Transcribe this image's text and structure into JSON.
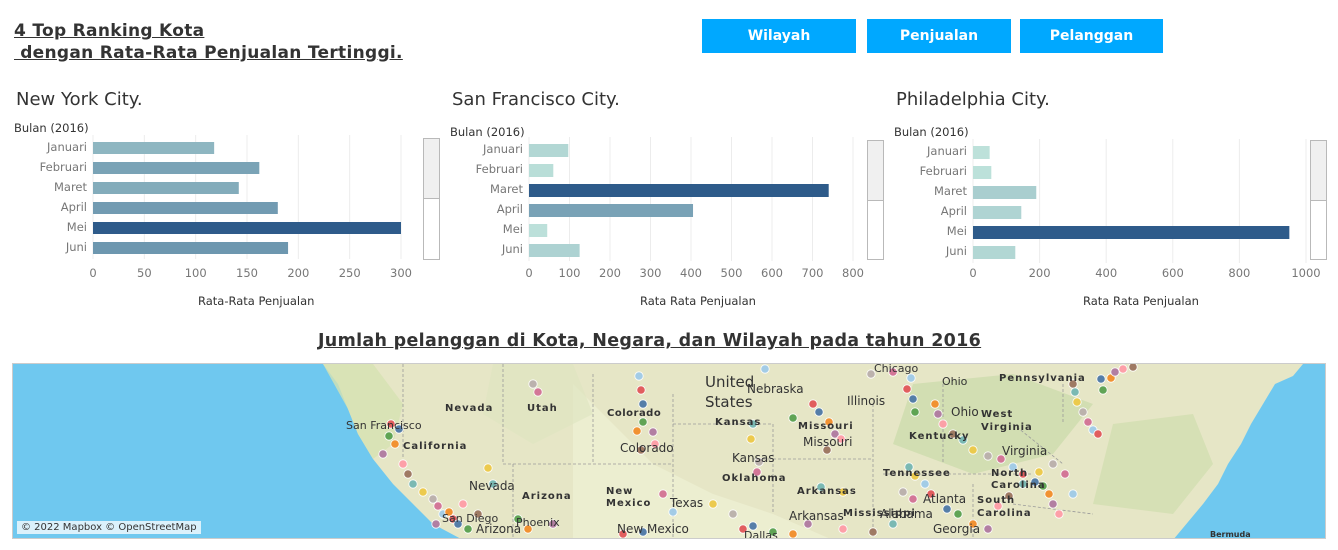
{
  "header": {
    "title": "4 Top Ranking Kota\n dengan Rata-Rata Penjualan Tertinggi."
  },
  "nav": {
    "wilayah": "Wilayah",
    "penjualan": "Penjualan",
    "pelanggan": "Pelanggan",
    "button_color": "#00a8ff"
  },
  "chart_data": [
    {
      "type": "bar",
      "title": "New York City.",
      "category_header": "Bulan (2016)",
      "categories": [
        "Januari",
        "Februari",
        "Maret",
        "April",
        "Mei",
        "Juni"
      ],
      "values": [
        118,
        162,
        142,
        180,
        300,
        190
      ],
      "xlabel": "Rata-Rata Penjualan",
      "xlim": [
        0,
        300
      ],
      "ticks": [
        0,
        50,
        100,
        150,
        200,
        250,
        300
      ],
      "grid": true
    },
    {
      "type": "bar",
      "title": "San Francisco City.",
      "category_header": "Bulan (2016)",
      "categories": [
        "Januari",
        "Februari",
        "Maret",
        "April",
        "Mei",
        "Juni"
      ],
      "values": [
        97,
        60,
        740,
        405,
        45,
        125
      ],
      "xlabel": "Rata Rata Penjualan",
      "xlim": [
        0,
        800
      ],
      "ticks": [
        0,
        100,
        200,
        300,
        400,
        500,
        600,
        700,
        800
      ],
      "grid": true
    },
    {
      "type": "bar",
      "title": "Philadelphia City.",
      "category_header": "Bulan (2016)",
      "categories": [
        "Januari",
        "Februari",
        "Maret",
        "April",
        "Mei",
        "Juni"
      ],
      "values": [
        50,
        55,
        190,
        145,
        950,
        127
      ],
      "xlabel": "Rata Rata Penjualan",
      "xlim": [
        0,
        1000
      ],
      "ticks": [
        0,
        200,
        400,
        600,
        800,
        1000
      ],
      "grid": true
    }
  ],
  "map": {
    "title": "Jumlah pelanggan di Kota, Negara, dan Wilayah pada tahun 2016",
    "attribution": "© 2022 Mapbox © OpenStreetMap",
    "labels": {
      "united_states": "United\nStates",
      "nebraska": "Nebraska",
      "nevada_state": "Nevada",
      "utah": "Utah",
      "colorado_state": "Colorado",
      "colorado_city": "Colorado",
      "kansas_state": "Kansas",
      "kansas_city": "Kansas",
      "missouri_state": "Missouri",
      "missouri_city": "Missouri",
      "illinois": "Illinois",
      "ohio_state": "Ohio",
      "ohio_city": "Ohio",
      "pennsylvania": "Pennsylvania",
      "west_virginia": "West\nVirginia",
      "kentucky": "Kentucky",
      "virginia_city": "Virginia",
      "san_francisco": "San Francisco",
      "california": "California",
      "nevada_city": "Nevada",
      "arizona_state": "Arizona",
      "arizona_city": "Arizona",
      "san_diego": "San Diego",
      "phoenix": "Phoenix",
      "new_mexico_state": "New\nMexico",
      "new_mexico_city": "New Mexico",
      "texas": "Texas",
      "oklahoma": "Oklahoma",
      "arkansas_state": "Arkansas",
      "arkansas_city": "Arkansas",
      "mississippi": "Mississippi",
      "alabama": "Alabama",
      "atlanta": "Atlanta",
      "tennessee": "Tennessee",
      "north_carolina": "North\nCarolina",
      "south_carolina": "South\nCarolina",
      "georgia": "Georgia",
      "bermuda": "Bermuda",
      "chicago": "Chicago",
      "dallas": "Dallas"
    }
  }
}
